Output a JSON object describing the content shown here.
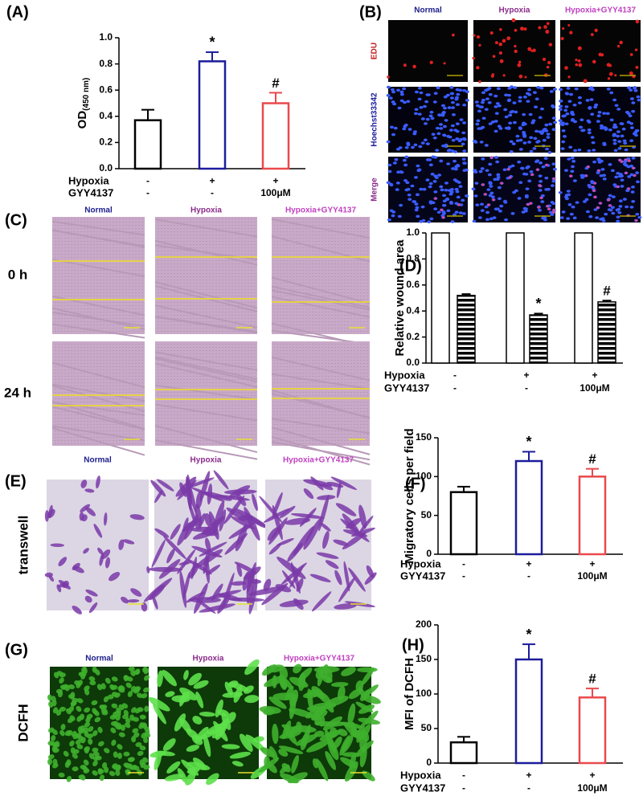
{
  "chart_data": [
    {
      "type": "bar",
      "label": "(A)",
      "ylabel": "OD",
      "ylabel_sub": "(450 nm)",
      "ylim": [
        0,
        1
      ],
      "yticks": [
        {
          "value": 0,
          "label": "0.0"
        },
        0.2,
        0.4,
        0.6,
        0.8,
        {
          "value": 1,
          "label": "1.0"
        }
      ],
      "series": [
        {
          "values": [
            0.37,
            0.82,
            0.5
          ],
          "errors": [
            0.08,
            0.07,
            0.08
          ],
          "colors": [
            "#000000",
            "#1c1c9c",
            "#e9494d"
          ]
        }
      ],
      "annotations": [
        null,
        "*",
        "#"
      ],
      "rows": [
        {
          "name": "Hypoxia",
          "values": [
            "-",
            "+",
            "+"
          ]
        },
        {
          "name": "GYY4137",
          "values": [
            "-",
            "-",
            "100μM"
          ]
        }
      ]
    },
    {
      "type": "bar",
      "label": "(D)",
      "ylabel": "Relative wound area",
      "ylim": [
        0,
        1
      ],
      "yticks": [
        {
          "value": 0,
          "label": "0.0"
        },
        0.2,
        0.4,
        0.6,
        0.8,
        {
          "value": 1,
          "label": "1.0"
        }
      ],
      "series": [
        {
          "values": [
            1,
            1,
            1
          ],
          "color": "#ffffff"
        },
        {
          "values": [
            0.52,
            0.37,
            0.47
          ],
          "errors": [
            0.01,
            0.01,
            0.01
          ],
          "color": "#000000",
          "hatched": true
        }
      ],
      "annotations": [
        null,
        "*",
        "#"
      ],
      "rows": [
        {
          "name": "Hypoxia",
          "values": [
            "-",
            "+",
            "+"
          ]
        },
        {
          "name": "GYY4137",
          "values": [
            "-",
            "-",
            "100μM"
          ]
        }
      ]
    },
    {
      "type": "bar",
      "label": "(F)",
      "ylabel": "Migratory cells per field",
      "ylim": [
        0,
        150
      ],
      "yticks": [
        0,
        50,
        100,
        150
      ],
      "series": [
        {
          "values": [
            80,
            120,
            100
          ],
          "errors": [
            7,
            12,
            10
          ],
          "colors": [
            "#000000",
            "#1c1c9c",
            "#e9494d"
          ]
        }
      ],
      "annotations": [
        null,
        "*",
        "#"
      ],
      "rows": [
        {
          "name": "Hypoxia",
          "values": [
            "-",
            "+",
            "+"
          ]
        },
        {
          "name": "GYY4137",
          "values": [
            "-",
            "-",
            "100μM"
          ]
        }
      ]
    },
    {
      "type": "bar",
      "label": "(H)",
      "ylabel": "MFI of  DCFH",
      "ylim": [
        0,
        200
      ],
      "yticks": [
        0,
        50,
        100,
        150,
        200
      ],
      "series": [
        {
          "values": [
            30,
            150,
            95
          ],
          "errors": [
            8,
            22,
            13
          ],
          "colors": [
            "#000000",
            "#1c1c9c",
            "#e9494d"
          ]
        }
      ],
      "annotations": [
        null,
        "*",
        "#"
      ],
      "rows": [
        {
          "name": "Hypoxia",
          "values": [
            "-",
            "+",
            "+"
          ]
        },
        {
          "name": "GYY4137",
          "values": [
            "-",
            "-",
            "100μM"
          ]
        }
      ]
    }
  ],
  "panels": {
    "B": {
      "label": "(B)",
      "columns": [
        "Normal",
        "Hypoxia",
        "Hypoxia+GYY4137"
      ],
      "rows": [
        "EDU",
        "Hoechst33342",
        "Merge"
      ]
    },
    "C": {
      "label": "(C)",
      "columns": [
        "Normal",
        "Hypoxia",
        "Hypoxia+GYY4137"
      ],
      "rows": [
        "0 h",
        "24 h"
      ]
    },
    "E": {
      "label": "(E)",
      "columns": [
        "Normal",
        "Hypoxia",
        "Hypoxia+GYY4137"
      ],
      "rows": [
        "transwell"
      ]
    },
    "G": {
      "label": "(G)",
      "columns": [
        "Normal",
        "Hypoxia",
        "Hypoxia+GYY4137"
      ],
      "rows": [
        "DCFH"
      ]
    }
  }
}
